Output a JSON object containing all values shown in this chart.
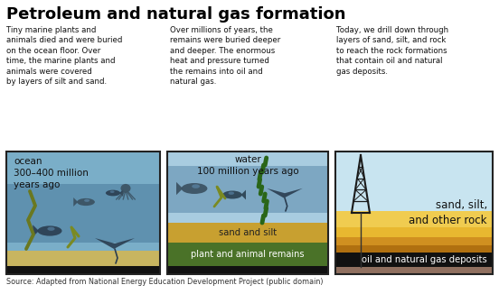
{
  "title": "Petroleum and natural gas formation",
  "title_fontsize": 13,
  "title_fontweight": "bold",
  "source_text": "Source: Adapted from National Energy Education Development Project (public domain)",
  "background_color": "#ffffff",
  "descriptions": [
    "Tiny marine plants and\nanimals died and were buried\non the ocean floor. Over\ntime, the marine plants and\nanimals were covered\nby layers of silt and sand.",
    "Over millions of years, the\nremains were buried deeper\nand deeper. The enormous\nheat and pressure turned\nthe remains into oil and\nnatural gas.",
    "Today, we drill down through\nlayers of sand, silt, and rock\nto reach the rock formations\nthat contain oil and natural\ngas deposits."
  ],
  "panel1": {
    "label": "ocean\n300–400 million\nyears ago",
    "water_top_color": "#7aaec8",
    "water_mid_color": "#4a7a9b",
    "sand_color": "#c8b560",
    "black_color": "#111111",
    "border_color": "#222222"
  },
  "panel2": {
    "label": "water\n100 million years ago",
    "water_top_color": "#a8cce0",
    "water_mid_color": "#5a8aaa",
    "sand_silt_color": "#c8a030",
    "remains_color": "#4a7228",
    "black_color": "#111111",
    "border_color": "#222222"
  },
  "panel3": {
    "sky_color": "#c8e4f0",
    "sand_light1": "#f0cc50",
    "sand_light2": "#e8b830",
    "sand_mid": "#d09020",
    "sand_dark": "#b07010",
    "oil_color": "#111111",
    "rock_color": "#907060",
    "border_color": "#222222",
    "label_sand": "sand, silt,\nand other rock",
    "label_oil": "oil and natural gas deposits"
  }
}
